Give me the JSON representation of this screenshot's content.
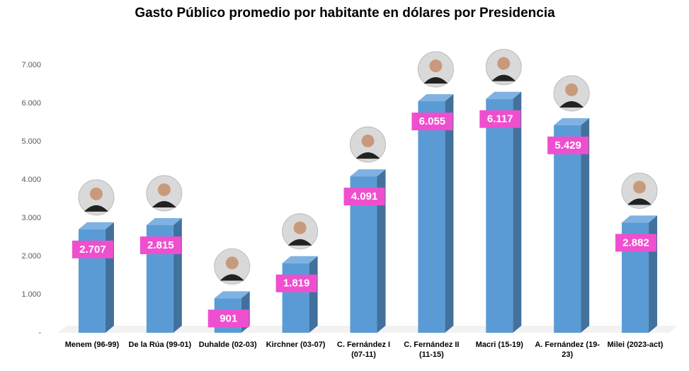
{
  "chart_data": {
    "type": "bar3d",
    "title": "Gasto Público promedio por habitante en dólares por Presidencia",
    "categories": [
      "Menem (96-99)",
      "De la Rúa (99-01)",
      "Duhalde (02-03)",
      "Kirchner (03-07)",
      "C. Fernández I (07-11)",
      "C. Fernández II (11-15)",
      "Macri (15-19)",
      "A. Fernández (19-23)",
      "Milei (2023-act)"
    ],
    "values": [
      2707,
      2815,
      901,
      1819,
      4091,
      6055,
      6117,
      5429,
      2882
    ],
    "value_labels": [
      "2.707",
      "2.815",
      "901",
      "1.819",
      "4.091",
      "6.055",
      "6.117",
      "5.429",
      "2.882"
    ],
    "color": "#5b9bd5",
    "label_color": "#ef4fcf",
    "ylim": [
      0,
      7000
    ],
    "yticks": [
      {
        "value": 0,
        "label": "-"
      },
      {
        "value": 1000,
        "label": "1.000"
      },
      {
        "value": 2000,
        "label": "2.000"
      },
      {
        "value": 3000,
        "label": "3.000"
      },
      {
        "value": 4000,
        "label": "4.000"
      },
      {
        "value": 5000,
        "label": "5.000"
      },
      {
        "value": 6000,
        "label": "6.000"
      },
      {
        "value": 7000,
        "label": "7.000"
      }
    ],
    "grid": false
  }
}
